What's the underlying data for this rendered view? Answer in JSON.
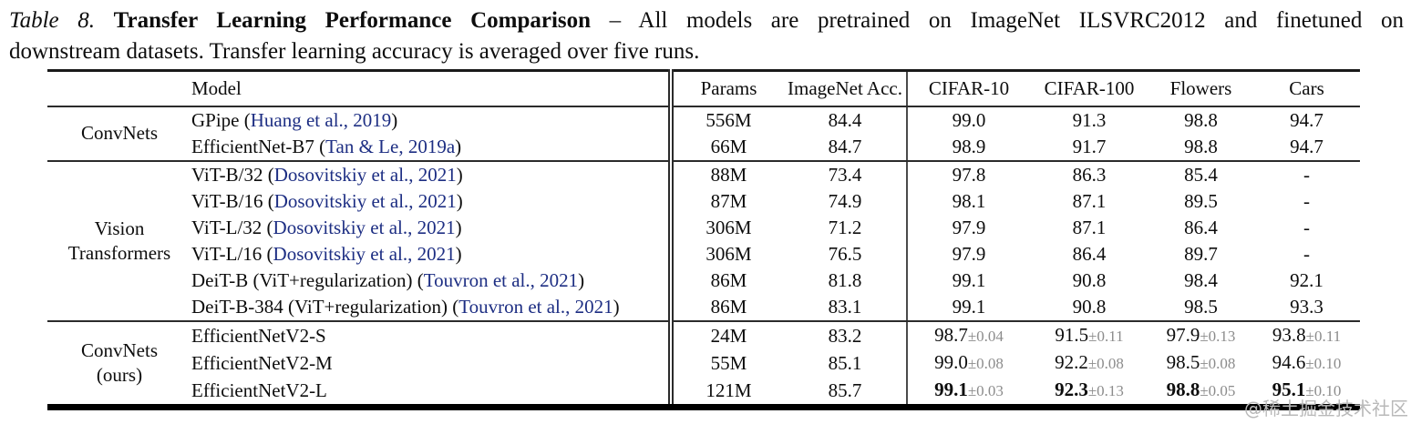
{
  "caption": {
    "label": "Table 8.",
    "title": "Transfer Learning Performance Comparison",
    "rest_line1": "– All models are pretrained on ImageNet ILSVRC2012 and finetuned on",
    "rest_line2": "downstream datasets. Transfer learning accuracy is averaged over five runs."
  },
  "watermark": "@稀土掘金技术社区",
  "colors": {
    "citation_blue": "#1d2e83",
    "std_gray": "#8c8c8c",
    "rule_dark": "#2b2b2b",
    "watermark_gray": "#b9b9b9"
  },
  "table": {
    "headers": [
      "Model",
      "Params",
      "ImageNet Acc.",
      "CIFAR-10",
      "CIFAR-100",
      "Flowers",
      "Cars"
    ],
    "groups": [
      {
        "label": [
          "ConvNets"
        ],
        "rows": [
          {
            "model_prefix": "GPipe (",
            "model_citation": "Huang et al., 2019",
            "model_suffix": ")",
            "params": "556M",
            "imagenet": "84.4",
            "results": [
              {
                "v": "99.0",
                "std": "",
                "bold": false
              },
              {
                "v": "91.3",
                "std": "",
                "bold": false
              },
              {
                "v": "98.8",
                "std": "",
                "bold": false
              },
              {
                "v": "94.7",
                "std": "",
                "bold": false
              }
            ]
          },
          {
            "model_prefix": "EfficientNet-B7 (",
            "model_citation": "Tan & Le, 2019a",
            "model_suffix": ")",
            "params": "66M",
            "imagenet": "84.7",
            "results": [
              {
                "v": "98.9",
                "std": "",
                "bold": false
              },
              {
                "v": "91.7",
                "std": "",
                "bold": false
              },
              {
                "v": "98.8",
                "std": "",
                "bold": false
              },
              {
                "v": "94.7",
                "std": "",
                "bold": false
              }
            ]
          }
        ]
      },
      {
        "label": [
          "Vision",
          "Transformers"
        ],
        "rows": [
          {
            "model_prefix": "ViT-B/32 (",
            "model_citation": "Dosovitskiy et al., 2021",
            "model_suffix": ")",
            "params": "88M",
            "imagenet": "73.4",
            "results": [
              {
                "v": "97.8",
                "std": "",
                "bold": false
              },
              {
                "v": "86.3",
                "std": "",
                "bold": false
              },
              {
                "v": "85.4",
                "std": "",
                "bold": false
              },
              {
                "v": "-",
                "std": "",
                "bold": false
              }
            ]
          },
          {
            "model_prefix": "ViT-B/16 (",
            "model_citation": "Dosovitskiy et al., 2021",
            "model_suffix": ")",
            "params": "87M",
            "imagenet": "74.9",
            "results": [
              {
                "v": "98.1",
                "std": "",
                "bold": false
              },
              {
                "v": "87.1",
                "std": "",
                "bold": false
              },
              {
                "v": "89.5",
                "std": "",
                "bold": false
              },
              {
                "v": "-",
                "std": "",
                "bold": false
              }
            ]
          },
          {
            "model_prefix": "ViT-L/32 (",
            "model_citation": "Dosovitskiy et al., 2021",
            "model_suffix": ")",
            "params": "306M",
            "imagenet": "71.2",
            "results": [
              {
                "v": "97.9",
                "std": "",
                "bold": false
              },
              {
                "v": "87.1",
                "std": "",
                "bold": false
              },
              {
                "v": "86.4",
                "std": "",
                "bold": false
              },
              {
                "v": "-",
                "std": "",
                "bold": false
              }
            ]
          },
          {
            "model_prefix": "ViT-L/16 (",
            "model_citation": "Dosovitskiy et al., 2021",
            "model_suffix": ")",
            "params": "306M",
            "imagenet": "76.5",
            "results": [
              {
                "v": "97.9",
                "std": "",
                "bold": false
              },
              {
                "v": "86.4",
                "std": "",
                "bold": false
              },
              {
                "v": "89.7",
                "std": "",
                "bold": false
              },
              {
                "v": "-",
                "std": "",
                "bold": false
              }
            ]
          },
          {
            "model_prefix": "DeiT-B (ViT+regularization) (",
            "model_citation": "Touvron et al., 2021",
            "model_suffix": ")",
            "params": "86M",
            "imagenet": "81.8",
            "results": [
              {
                "v": "99.1",
                "std": "",
                "bold": false
              },
              {
                "v": "90.8",
                "std": "",
                "bold": false
              },
              {
                "v": "98.4",
                "std": "",
                "bold": false
              },
              {
                "v": "92.1",
                "std": "",
                "bold": false
              }
            ]
          },
          {
            "model_prefix": "DeiT-B-384 (ViT+regularization) (",
            "model_citation": "Touvron et al., 2021",
            "model_suffix": ")",
            "params": "86M",
            "imagenet": "83.1",
            "results": [
              {
                "v": "99.1",
                "std": "",
                "bold": false
              },
              {
                "v": "90.8",
                "std": "",
                "bold": false
              },
              {
                "v": "98.5",
                "std": "",
                "bold": false
              },
              {
                "v": "93.3",
                "std": "",
                "bold": false
              }
            ]
          }
        ]
      },
      {
        "label": [
          "ConvNets",
          "(ours)"
        ],
        "rows": [
          {
            "model_prefix": "EfficientNetV2-S",
            "model_citation": "",
            "model_suffix": "",
            "params": "24M",
            "imagenet": "83.2",
            "results": [
              {
                "v": "98.7",
                "std": "±0.04",
                "bold": false
              },
              {
                "v": "91.5",
                "std": "±0.11",
                "bold": false
              },
              {
                "v": "97.9",
                "std": "±0.13",
                "bold": false
              },
              {
                "v": "93.8",
                "std": "±0.11",
                "bold": false
              }
            ]
          },
          {
            "model_prefix": "EfficientNetV2-M",
            "model_citation": "",
            "model_suffix": "",
            "params": "55M",
            "imagenet": "85.1",
            "results": [
              {
                "v": "99.0",
                "std": "±0.08",
                "bold": false
              },
              {
                "v": "92.2",
                "std": "±0.08",
                "bold": false
              },
              {
                "v": "98.5",
                "std": "±0.08",
                "bold": false
              },
              {
                "v": "94.6",
                "std": "±0.10",
                "bold": false
              }
            ]
          },
          {
            "model_prefix": "EfficientNetV2-L",
            "model_citation": "",
            "model_suffix": "",
            "params": "121M",
            "imagenet": "85.7",
            "results": [
              {
                "v": "99.1",
                "std": "±0.03",
                "bold": true
              },
              {
                "v": "92.3",
                "std": "±0.13",
                "bold": true
              },
              {
                "v": "98.8",
                "std": "±0.05",
                "bold": true
              },
              {
                "v": "95.1",
                "std": "±0.10",
                "bold": true
              }
            ]
          }
        ]
      }
    ]
  }
}
